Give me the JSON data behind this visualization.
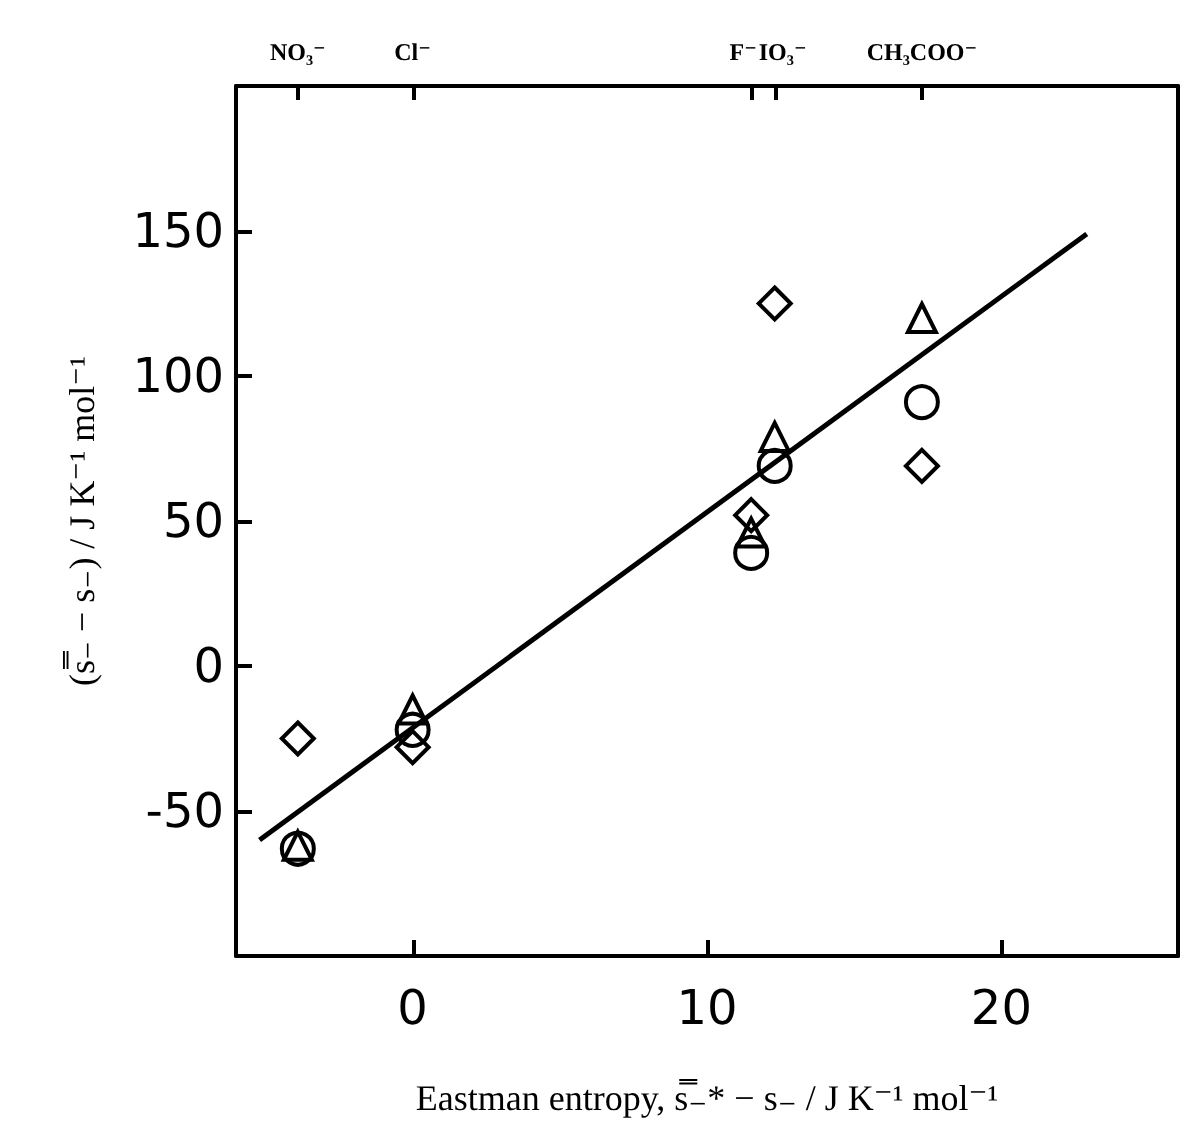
{
  "chart_data": {
    "type": "scatter",
    "xlabel": "Eastman entropy, s̿₋* − s₋ / J K⁻¹ mol⁻¹",
    "ylabel": "(s̿₋ − s₋) / J K⁻¹ mol⁻¹",
    "xlim": [
      -6,
      26
    ],
    "xticks": [
      0,
      10,
      20
    ],
    "annotations": [
      {
        "text": "NO₃⁻",
        "x": -3.9
      },
      {
        "text": "Cl⁻",
        "x": 0
      },
      {
        "text": "F⁻",
        "x": 11.5
      },
      {
        "text": "IO₃⁻",
        "x": 12.3
      },
      {
        "text": "CH₃COO⁻",
        "x": 17.3
      }
    ],
    "ylim": [
      -100,
      200
    ],
    "yticks": [
      -50,
      0,
      50,
      100,
      150
    ],
    "grid": false,
    "series": [
      {
        "color": "#000000",
        "marker": "diamond",
        "x": [
          -3.9,
          0,
          11.5,
          12.3,
          17.3
        ],
        "values": [
          -25,
          -28,
          52,
          125,
          69
        ]
      },
      {
        "color": "#000000",
        "marker": "triangle",
        "x": [
          -3.9,
          0,
          11.5,
          12.3,
          17.3
        ],
        "values": [
          -62,
          -15,
          46,
          79,
          120
        ]
      },
      {
        "color": "#000000",
        "marker": "circle",
        "x": [
          -3.9,
          0,
          11.5,
          12.3,
          17.3
        ],
        "values": [
          -63,
          -22,
          39,
          69,
          91
        ]
      },
      {
        "type": "line",
        "color": "#000000",
        "marker": "none",
        "line_style": "solid",
        "x": [
          -5.2,
          22.9
        ],
        "values": [
          -60,
          149
        ]
      }
    ]
  }
}
